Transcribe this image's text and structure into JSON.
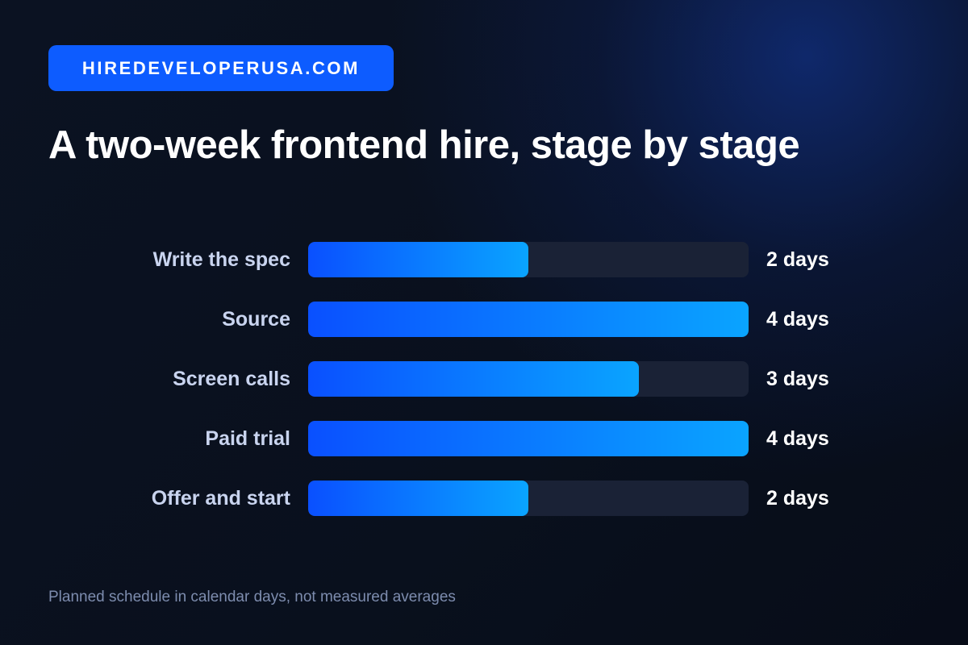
{
  "brand": {
    "label": "HIREDEVELOPERUSA.COM",
    "color": "#0d5cff"
  },
  "title": "A two-week frontend hire, stage by stage",
  "footnote": "Planned schedule in calendar days, not measured averages",
  "chart_data": {
    "type": "bar",
    "orientation": "horizontal",
    "categories": [
      "Write the spec",
      "Source",
      "Screen calls",
      "Paid trial",
      "Offer and start"
    ],
    "values": [
      2,
      4,
      3,
      4,
      2
    ],
    "value_labels": [
      "2 days",
      "4 days",
      "3 days",
      "4 days",
      "2 days"
    ],
    "xlim": [
      0,
      4
    ],
    "grid": false,
    "bar_color": "#0a7dff",
    "track_color": "#1a2236"
  }
}
